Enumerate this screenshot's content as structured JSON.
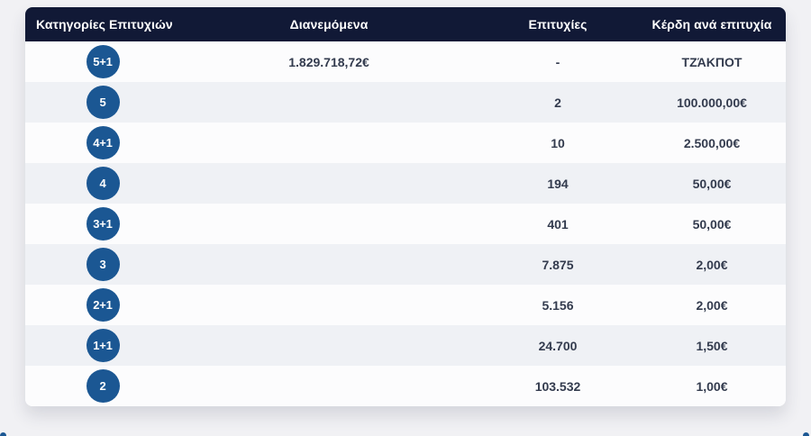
{
  "page": {
    "background_color": "#f1f1f4"
  },
  "table": {
    "header": {
      "category": "Κατηγορίες Επιτυχιών",
      "distributed": "Διανεμόμενα",
      "winners": "Επιτυχίες",
      "prize_per_winner": "Κέρδη ανά επιτυχία"
    },
    "rows": [
      {
        "tier": "5+1",
        "distributed": "1.829.718,72€",
        "winners": "-",
        "prize": "ΤΖΆΚΠΟΤ"
      },
      {
        "tier": "5",
        "distributed": "",
        "winners": "2",
        "prize": "100.000,00€"
      },
      {
        "tier": "4+1",
        "distributed": "",
        "winners": "10",
        "prize": "2.500,00€"
      },
      {
        "tier": "4",
        "distributed": "",
        "winners": "194",
        "prize": "50,00€"
      },
      {
        "tier": "3+1",
        "distributed": "",
        "winners": "401",
        "prize": "50,00€"
      },
      {
        "tier": "3",
        "distributed": "",
        "winners": "7.875",
        "prize": "2,00€"
      },
      {
        "tier": "2+1",
        "distributed": "",
        "winners": "5.156",
        "prize": "2,00€"
      },
      {
        "tier": "1+1",
        "distributed": "",
        "winners": "24.700",
        "prize": "1,50€"
      },
      {
        "tier": "2",
        "distributed": "",
        "winners": "103.532",
        "prize": "1,00€"
      }
    ],
    "colors": {
      "header_bg": "#111936",
      "badge_bg": "#1b5793",
      "row_bg": "#fcfcfd",
      "row_alt_bg": "#eff1f5",
      "cell_text": "#333b4e"
    }
  }
}
